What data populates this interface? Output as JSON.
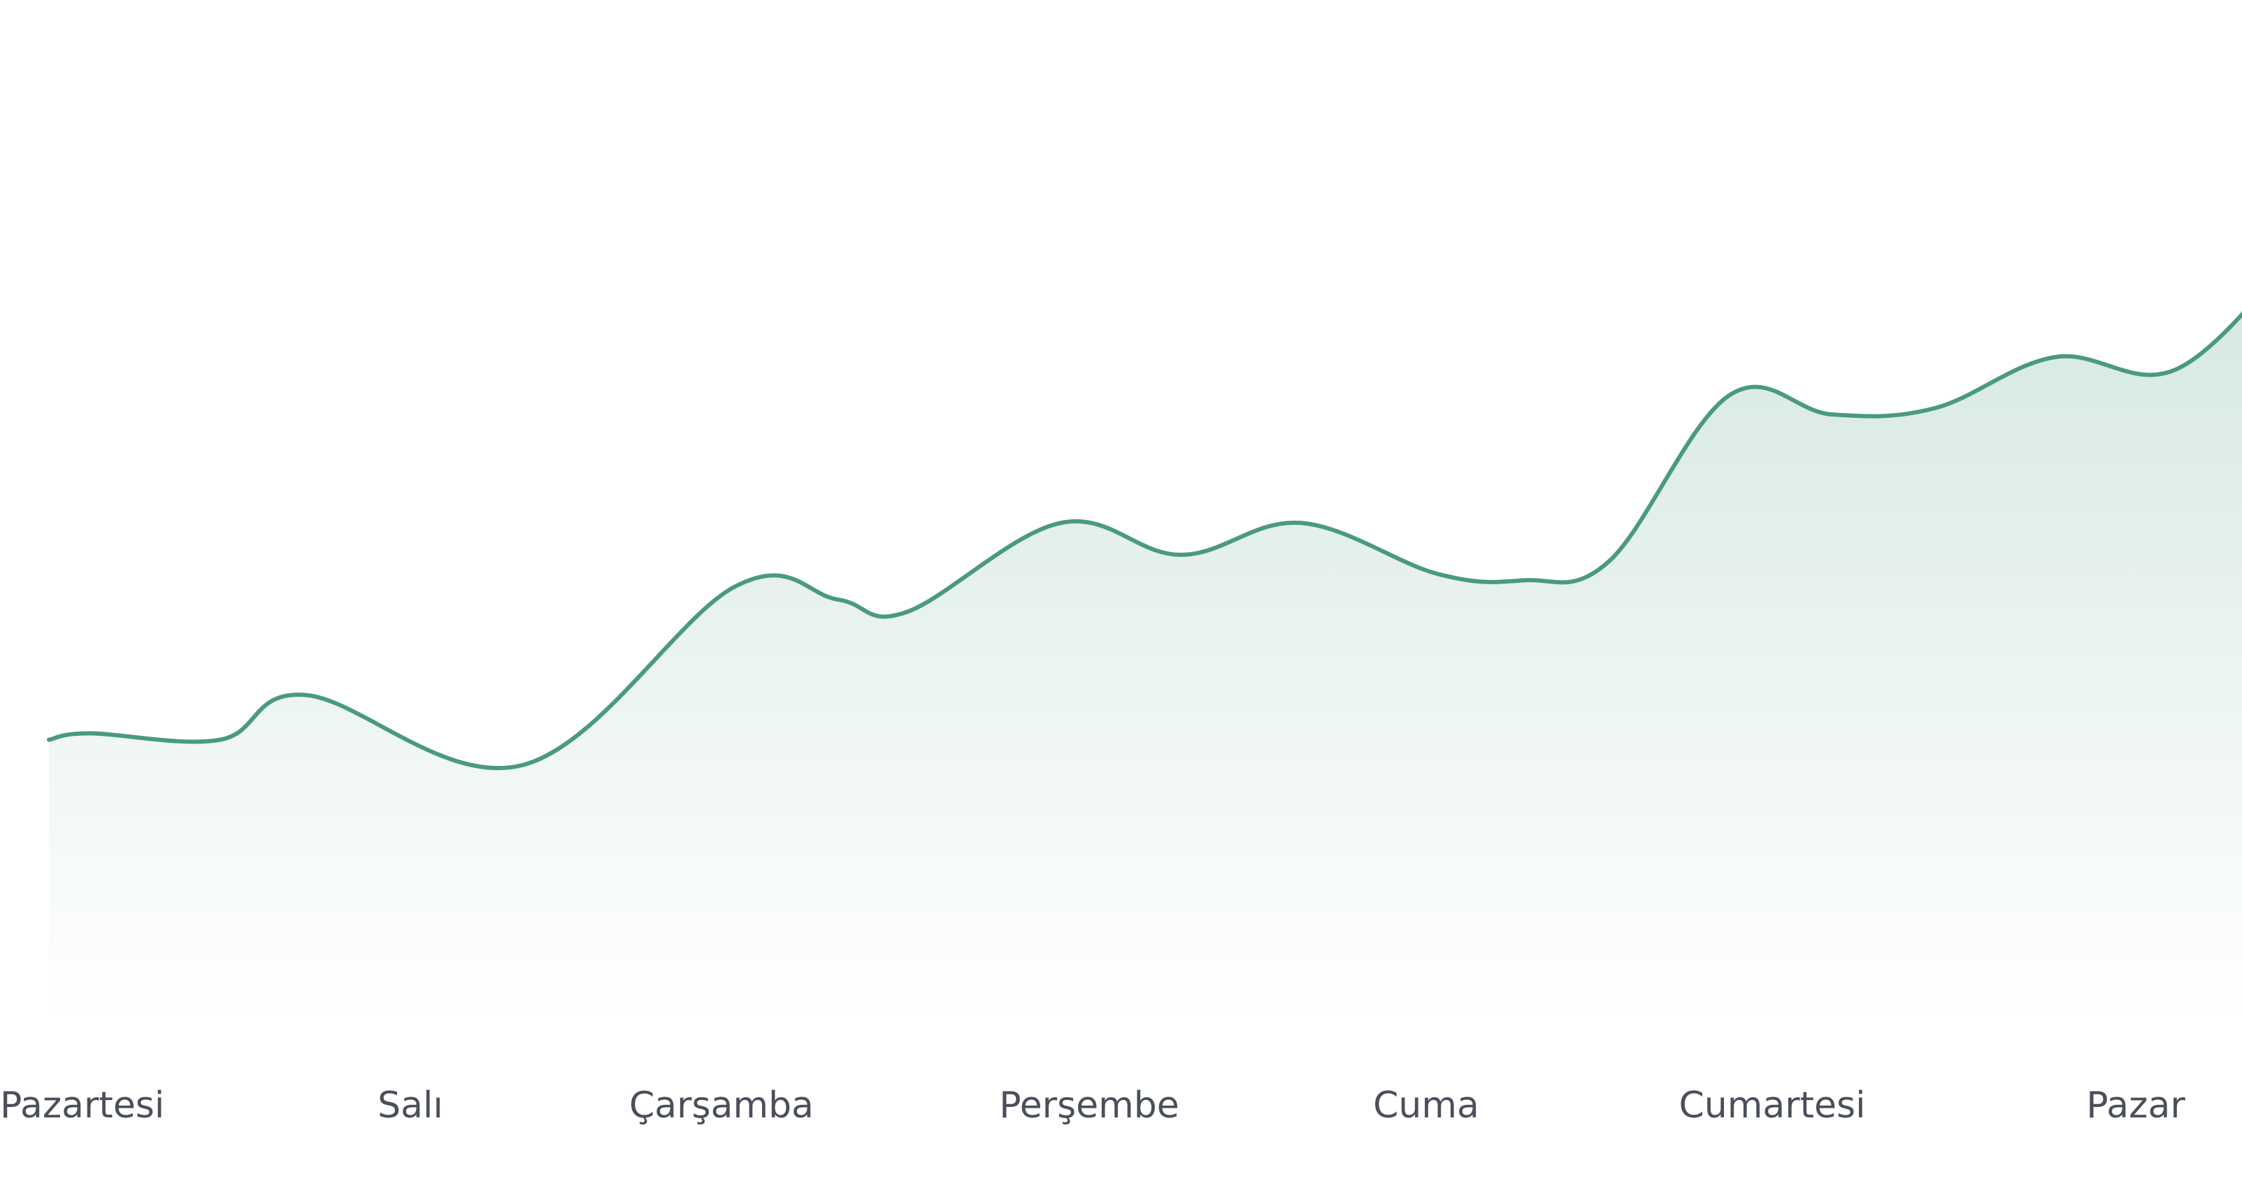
{
  "chart_data": {
    "type": "area",
    "x_ticks": [
      "Pazartesi",
      "Salı",
      "Çarşamba",
      "Perşembe",
      "Cuma",
      "Cumartesi",
      "Pazar"
    ],
    "series": [
      {
        "color": "#4a9a7f",
        "fill_color": "#4a9a7f",
        "x": [
          0,
          0.12,
          0.5,
          0.75,
          1.38,
          2.0,
          2.3,
          2.5,
          2.95,
          3.3,
          3.65,
          4.05,
          4.3,
          4.55,
          4.9,
          5.2,
          5.5,
          5.85,
          6.2,
          6.55
        ],
        "values": [
          2.2,
          2.25,
          2.2,
          2.55,
          2.0,
          3.4,
          3.3,
          3.2,
          3.9,
          3.65,
          3.9,
          3.5,
          3.45,
          3.6,
          4.9,
          4.75,
          4.8,
          5.2,
          5.1,
          6.0
        ]
      }
    ],
    "ylim": [
      0,
      8
    ],
    "grid": false,
    "legend": "none",
    "fill_gradient": true
  }
}
